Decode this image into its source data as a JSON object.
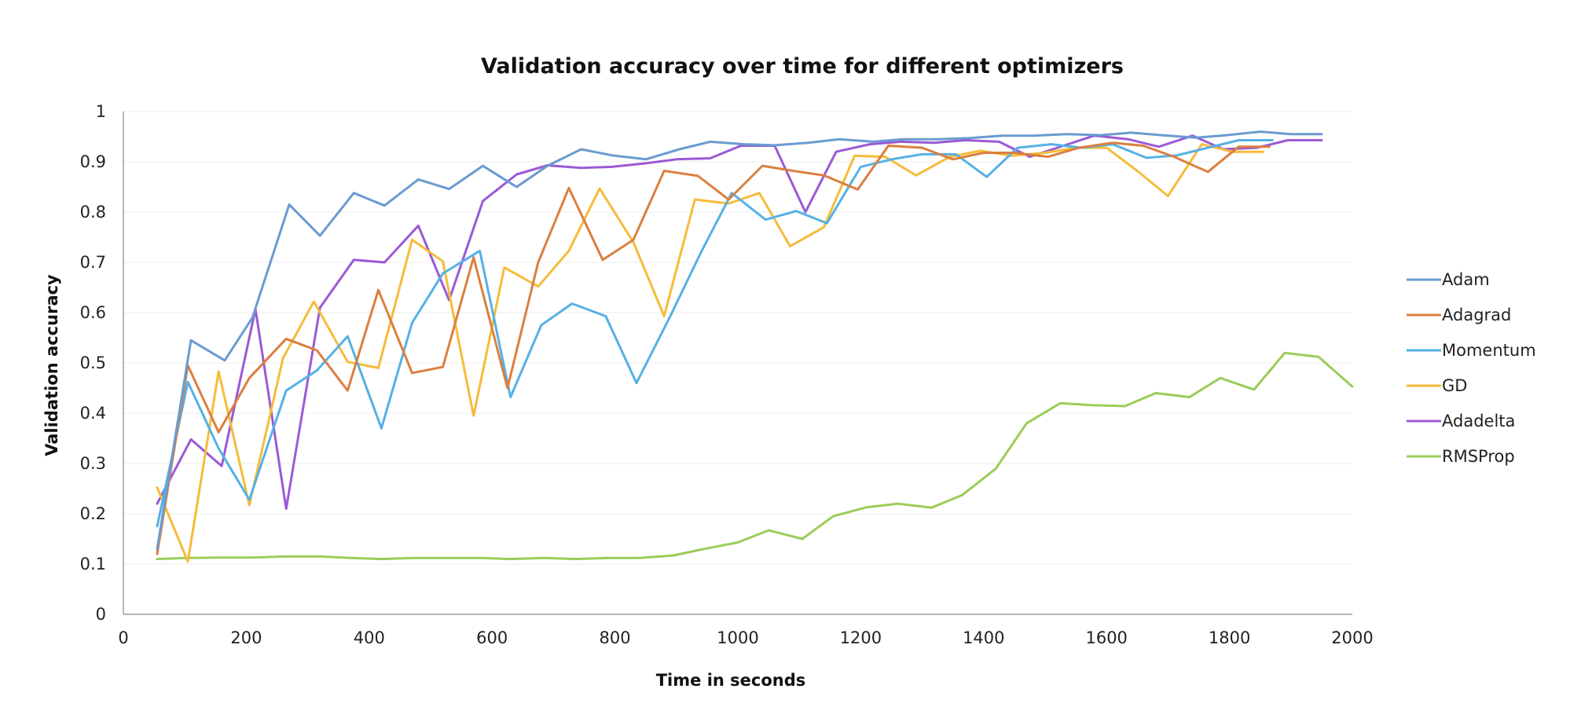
{
  "chart_data": {
    "type": "line",
    "title": "Validation accuracy over time for different optimizers",
    "xlabel": "Time in seconds",
    "ylabel": "Validation accuracy",
    "xlim": [
      0,
      2000
    ],
    "ylim": [
      0,
      1
    ],
    "xticks": [
      "0",
      "200",
      "400",
      "600",
      "800",
      "1000",
      "1200",
      "1400",
      "1600",
      "1800",
      "2000"
    ],
    "yticks": [
      "0",
      "0.1",
      "0.2",
      "0.3",
      "0.4",
      "0.5",
      "0.6",
      "0.7",
      "0.8",
      "0.9",
      "1"
    ],
    "grid": "horizontal",
    "legend_position": "right",
    "series": [
      {
        "name": "Adam",
        "color": "#6a9bd1",
        "x": [
          55,
          110,
          165,
          210,
          270,
          320,
          375,
          425,
          480,
          530,
          585,
          640,
          690,
          745,
          795,
          850,
          905,
          955,
          1010,
          1060,
          1115,
          1165,
          1220,
          1270,
          1325,
          1375,
          1430,
          1480,
          1535,
          1590,
          1640,
          1690,
          1745,
          1795,
          1850,
          1900,
          1950
        ],
        "y": [
          0.13,
          0.545,
          0.505,
          0.59,
          0.815,
          0.753,
          0.838,
          0.813,
          0.865,
          0.846,
          0.892,
          0.85,
          0.892,
          0.925,
          0.913,
          0.905,
          0.925,
          0.94,
          0.935,
          0.933,
          0.938,
          0.945,
          0.94,
          0.945,
          0.945,
          0.947,
          0.952,
          0.952,
          0.955,
          0.953,
          0.958,
          0.953,
          0.948,
          0.953,
          0.96,
          0.955,
          0.955
        ]
      },
      {
        "name": "Adagrad",
        "color": "#db7f40",
        "x": [
          55,
          105,
          155,
          205,
          265,
          315,
          365,
          415,
          470,
          520,
          570,
          625,
          675,
          725,
          780,
          830,
          880,
          935,
          985,
          1040,
          1090,
          1140,
          1195,
          1245,
          1300,
          1350,
          1400,
          1450,
          1505,
          1555,
          1610,
          1660,
          1710,
          1765,
          1815,
          1865
        ],
        "y": [
          0.12,
          0.495,
          0.362,
          0.47,
          0.548,
          0.525,
          0.445,
          0.645,
          0.48,
          0.492,
          0.71,
          0.45,
          0.7,
          0.848,
          0.705,
          0.745,
          0.882,
          0.872,
          0.825,
          0.892,
          0.882,
          0.873,
          0.845,
          0.932,
          0.928,
          0.905,
          0.918,
          0.918,
          0.91,
          0.928,
          0.938,
          0.932,
          0.91,
          0.88,
          0.93,
          0.93
        ]
      },
      {
        "name": "Momentum",
        "color": "#55b1e6",
        "x": [
          55,
          105,
          155,
          205,
          265,
          315,
          365,
          420,
          470,
          520,
          580,
          630,
          680,
          730,
          785,
          835,
          890,
          940,
          990,
          1045,
          1095,
          1145,
          1200,
          1250,
          1300,
          1355,
          1405,
          1455,
          1510,
          1560,
          1610,
          1665,
          1715,
          1765,
          1815,
          1870
        ],
        "y": [
          0.175,
          0.462,
          0.33,
          0.228,
          0.445,
          0.485,
          0.553,
          0.37,
          0.58,
          0.678,
          0.723,
          0.432,
          0.575,
          0.618,
          0.593,
          0.46,
          0.593,
          0.72,
          0.838,
          0.785,
          0.802,
          0.778,
          0.89,
          0.905,
          0.915,
          0.915,
          0.87,
          0.928,
          0.935,
          0.928,
          0.935,
          0.908,
          0.913,
          0.928,
          0.943,
          0.943
        ]
      },
      {
        "name": "GD",
        "color": "#f5bc3a",
        "x": [
          55,
          105,
          155,
          205,
          260,
          310,
          365,
          415,
          470,
          520,
          570,
          620,
          675,
          725,
          775,
          830,
          880,
          930,
          985,
          1035,
          1085,
          1140,
          1190,
          1240,
          1290,
          1345,
          1395,
          1445,
          1500,
          1550,
          1600,
          1650,
          1700,
          1755,
          1805,
          1855
        ],
        "y": [
          0.252,
          0.105,
          0.483,
          0.217,
          0.51,
          0.622,
          0.502,
          0.49,
          0.745,
          0.702,
          0.395,
          0.69,
          0.652,
          0.723,
          0.847,
          0.74,
          0.593,
          0.825,
          0.817,
          0.838,
          0.732,
          0.77,
          0.912,
          0.91,
          0.873,
          0.91,
          0.922,
          0.912,
          0.918,
          0.928,
          0.928,
          0.882,
          0.832,
          0.935,
          0.92,
          0.92
        ]
      },
      {
        "name": "Adadelta",
        "color": "#9b59d6",
        "x": [
          55,
          110,
          160,
          215,
          265,
          320,
          375,
          425,
          480,
          530,
          585,
          640,
          690,
          745,
          795,
          850,
          900,
          955,
          1005,
          1060,
          1110,
          1160,
          1215,
          1265,
          1320,
          1370,
          1425,
          1475,
          1530,
          1580,
          1635,
          1685,
          1740,
          1790,
          1845,
          1895,
          1950
        ],
        "y": [
          0.22,
          0.348,
          0.295,
          0.607,
          0.21,
          0.61,
          0.705,
          0.7,
          0.773,
          0.625,
          0.822,
          0.875,
          0.893,
          0.888,
          0.89,
          0.897,
          0.905,
          0.907,
          0.932,
          0.932,
          0.8,
          0.92,
          0.935,
          0.94,
          0.938,
          0.943,
          0.94,
          0.91,
          0.932,
          0.952,
          0.945,
          0.93,
          0.952,
          0.925,
          0.928,
          0.943,
          0.943
        ]
      },
      {
        "name": "RMSProp",
        "color": "#9ccc59",
        "x": [
          55,
          105,
          160,
          210,
          265,
          320,
          370,
          420,
          475,
          530,
          580,
          630,
          685,
          735,
          790,
          840,
          895,
          945,
          1000,
          1050,
          1105,
          1155,
          1210,
          1260,
          1315,
          1365,
          1420,
          1470,
          1525,
          1575,
          1630,
          1680,
          1735,
          1785,
          1840,
          1890,
          1945,
          2000
        ],
        "y": [
          0.11,
          0.112,
          0.113,
          0.113,
          0.115,
          0.115,
          0.112,
          0.11,
          0.112,
          0.112,
          0.112,
          0.11,
          0.112,
          0.11,
          0.112,
          0.112,
          0.117,
          0.13,
          0.143,
          0.167,
          0.15,
          0.195,
          0.213,
          0.22,
          0.212,
          0.237,
          0.29,
          0.38,
          0.42,
          0.416,
          0.414,
          0.44,
          0.432,
          0.47,
          0.447,
          0.52,
          0.512,
          0.453
        ]
      }
    ]
  }
}
